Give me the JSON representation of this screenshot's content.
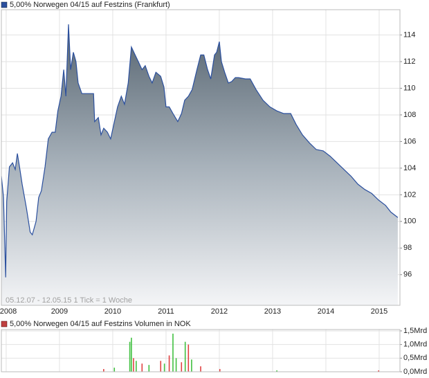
{
  "chart_data": [
    {
      "type": "area-line",
      "title": "5,00% Norwegen 04/15 auf Festzins (Frankfurt)",
      "note": "05.12.07 - 12.05.15   1 Tick = 1 Woche",
      "color": "#2a4f9e",
      "x": [
        2007.91,
        2007.95,
        2007.99,
        2008.01,
        2008.06,
        2008.12,
        2008.17,
        2008.21,
        2008.25,
        2008.3,
        2008.38,
        2008.45,
        2008.49,
        2008.56,
        2008.61,
        2008.66,
        2008.73,
        2008.79,
        2008.86,
        2008.92,
        2008.97,
        2009.03,
        2009.08,
        2009.12,
        2009.17,
        2009.21,
        2009.26,
        2009.31,
        2009.35,
        2009.42,
        2009.51,
        2009.64,
        2009.66,
        2009.73,
        2009.78,
        2009.83,
        2009.9,
        2009.96,
        2010.03,
        2010.09,
        2010.16,
        2010.22,
        2010.29,
        2010.35,
        2010.42,
        2010.48,
        2010.55,
        2010.61,
        2010.68,
        2010.74,
        2010.81,
        2010.9,
        2010.96,
        2011.0,
        2011.06,
        2011.13,
        2011.22,
        2011.29,
        2011.35,
        2011.42,
        2011.49,
        2011.58,
        2011.65,
        2011.71,
        2011.78,
        2011.84,
        2011.91,
        2011.95,
        2012.0,
        2012.04,
        2012.1,
        2012.17,
        2012.23,
        2012.3,
        2012.36,
        2012.49,
        2012.58,
        2012.69,
        2012.82,
        2012.95,
        2013.08,
        2013.21,
        2013.34,
        2013.44,
        2013.56,
        2013.69,
        2013.82,
        2013.95,
        2014.08,
        2014.21,
        2014.34,
        2014.47,
        2014.6,
        2014.73,
        2014.86,
        2014.99,
        2015.12,
        2015.22,
        2015.35
      ],
      "values": [
        103.4,
        101.8,
        95.8,
        101.5,
        104.1,
        104.4,
        103.9,
        105.1,
        104.1,
        102.8,
        101.0,
        99.2,
        99.0,
        100.0,
        101.8,
        102.3,
        104.1,
        106.2,
        106.7,
        106.7,
        108.3,
        109.4,
        111.4,
        109.4,
        114.8,
        111.4,
        112.7,
        112.0,
        110.4,
        109.6,
        109.6,
        109.6,
        107.5,
        107.8,
        106.5,
        107.0,
        106.7,
        106.2,
        107.5,
        108.6,
        109.4,
        108.8,
        110.4,
        113.1,
        112.5,
        112.0,
        111.4,
        111.7,
        110.9,
        110.4,
        111.2,
        110.9,
        110.1,
        108.6,
        108.6,
        108.1,
        107.5,
        108.1,
        109.1,
        109.4,
        109.9,
        111.4,
        112.5,
        112.5,
        111.4,
        110.7,
        112.5,
        112.7,
        113.5,
        112.0,
        111.2,
        110.4,
        110.5,
        110.8,
        110.8,
        110.7,
        110.7,
        109.9,
        109.1,
        108.6,
        108.3,
        108.1,
        108.1,
        107.3,
        106.5,
        105.9,
        105.4,
        105.3,
        104.9,
        104.4,
        103.9,
        103.4,
        102.8,
        102.4,
        102.1,
        101.6,
        101.2,
        100.7,
        100.3
      ],
      "xlim": [
        2007.91,
        2015.39
      ],
      "xticks": [
        2008,
        2009,
        2010,
        2011,
        2012,
        2013,
        2014,
        2015
      ],
      "ylim": [
        93.7,
        115.9
      ],
      "yticks": [
        96,
        98,
        100,
        102,
        104,
        106,
        108,
        110,
        112,
        114
      ],
      "grid": true
    },
    {
      "type": "bar",
      "title": "5,00% Norwegen 04/15 auf Festzins Volumen in NOK",
      "color": "#c04040",
      "x": [
        2009.83,
        2010.03,
        2010.32,
        2010.35,
        2010.39,
        2010.44,
        2010.55,
        2010.68,
        2010.9,
        2010.97,
        2011.06,
        2011.13,
        2011.19,
        2011.29,
        2011.36,
        2011.42,
        2011.48,
        2011.65,
        2012.01,
        2013.08,
        2014.99
      ],
      "values": [
        0.1,
        0.15,
        1.1,
        1.25,
        0.5,
        0.4,
        0.3,
        0.25,
        0.4,
        0.3,
        0.6,
        1.4,
        0.5,
        0.35,
        1.1,
        1.0,
        0.45,
        0.2,
        0.1,
        0.05,
        0.05
      ],
      "colors": [
        "#e04040",
        "#40c040",
        "#40c040",
        "#40c040",
        "#e04040",
        "#40c040",
        "#e04040",
        "#40c040",
        "#e04040",
        "#40c040",
        "#e04040",
        "#40c040",
        "#40c040",
        "#e04040",
        "#40c040",
        "#e04040",
        "#40c040",
        "#e04040",
        "#e04040",
        "#40c040",
        "#e04040"
      ],
      "xlim": [
        2007.91,
        2015.39
      ],
      "ylim": [
        0,
        1.55
      ],
      "yticks": [
        {
          "value": 0,
          "label": "0,0Mrd"
        },
        {
          "value": 0.5,
          "label": "0,5Mrd"
        },
        {
          "value": 1.0,
          "label": "1,0Mrd"
        },
        {
          "value": 1.5,
          "label": "1,5Mrd"
        }
      ],
      "grid": true
    }
  ]
}
